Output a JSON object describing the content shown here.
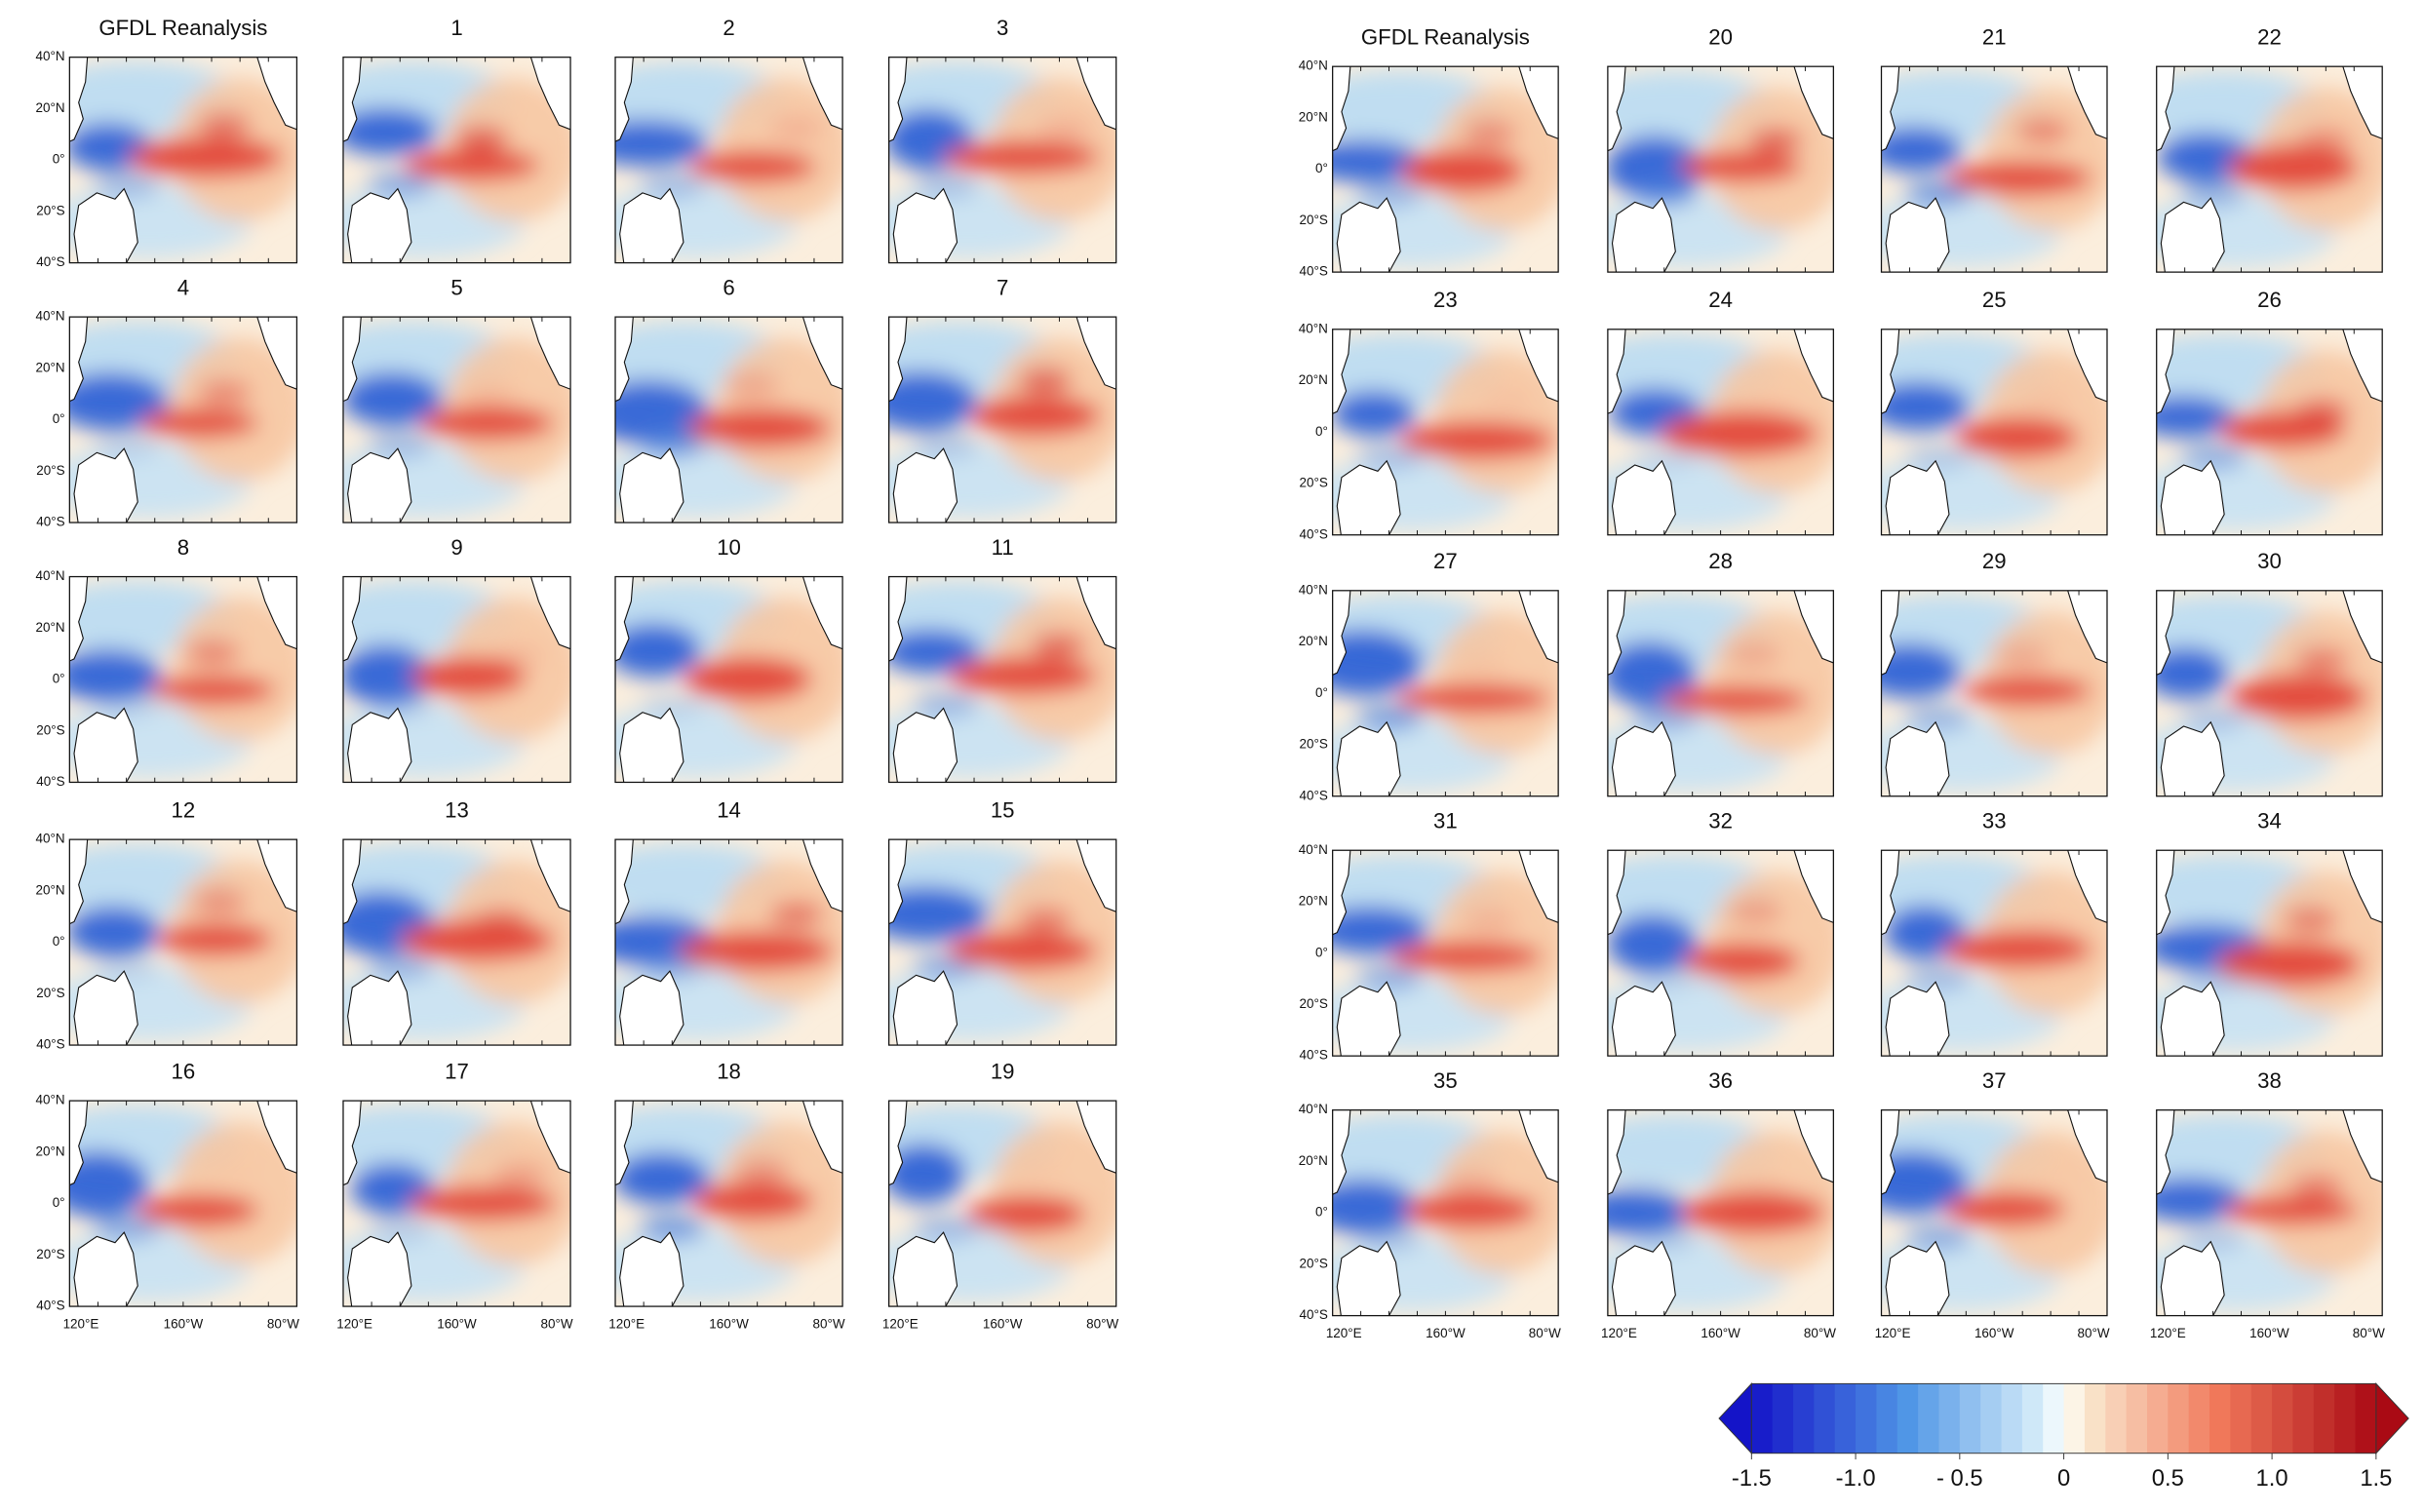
{
  "panels": [
    {
      "titles": [
        "GFDL Reanalysis",
        "1",
        "2",
        "3",
        "4",
        "5",
        "6",
        "7",
        "8",
        "9",
        "10",
        "11",
        "12",
        "13",
        "14",
        "15",
        "16",
        "17",
        "18",
        "19"
      ]
    },
    {
      "titles": [
        "GFDL Reanalysis",
        "20",
        "21",
        "22",
        "23",
        "24",
        "25",
        "26",
        "27",
        "28",
        "29",
        "30",
        "31",
        "32",
        "33",
        "34",
        "35",
        "36",
        "37",
        "38"
      ]
    }
  ],
  "lat_labels": [
    "40°N",
    "20°N",
    "0°",
    "20°S",
    "40°S"
  ],
  "lon_labels": [
    "120°E",
    "160°W",
    "80°W"
  ],
  "colorbar": {
    "range": [
      -1.5,
      1.5
    ],
    "ticks": [
      -1.5,
      {
        "value": -1.0,
        "label": "-1.0"
      },
      {
        "value": -0.5,
        "label": "- 0.5"
      },
      0,
      0.5,
      {
        "value": 1.0,
        "label": "1.0"
      },
      1.5
    ]
  }
}
